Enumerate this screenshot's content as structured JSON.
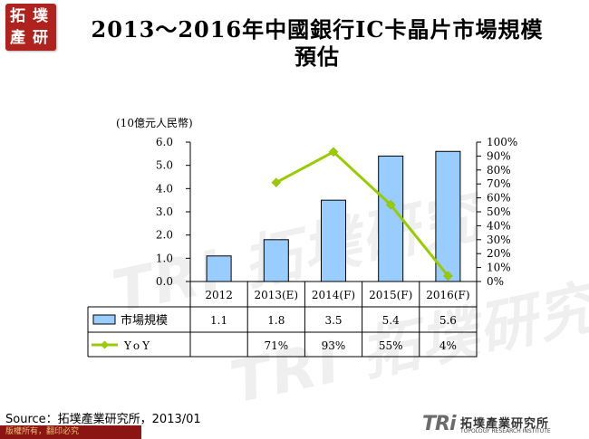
{
  "logo": {
    "chars": [
      "拓",
      "墣",
      "產",
      "研"
    ]
  },
  "header": {
    "title_line1": "2013～2016年中國銀行IC卡晶片市場規模",
    "title_line2": "預估"
  },
  "watermark": {
    "text": "TRI 拓墣研究"
  },
  "chart_data": {
    "type": "bar",
    "categories": [
      "2012",
      "2013(E)",
      "2014(F)",
      "2015(F)",
      "2016(F)"
    ],
    "ylabel": "(10億元人民幣)",
    "ylim": [
      0,
      6
    ],
    "yticks": [
      "0.0",
      "1.0",
      "2.0",
      "3.0",
      "4.0",
      "5.0",
      "6.0"
    ],
    "y2lim": [
      0,
      100
    ],
    "y2ticks": [
      "0%",
      "10%",
      "20%",
      "30%",
      "40%",
      "50%",
      "60%",
      "70%",
      "80%",
      "90%",
      "100%"
    ],
    "series": [
      {
        "name": "市場規模",
        "type": "bar",
        "axis": "left",
        "values": [
          1.1,
          1.8,
          3.5,
          5.4,
          5.6
        ],
        "labels": [
          "1.1",
          "1.8",
          "3.5",
          "5.4",
          "5.6"
        ],
        "color": "#99ccff"
      },
      {
        "name": "YoY",
        "type": "line",
        "axis": "right",
        "values": [
          null,
          71,
          93,
          55,
          4
        ],
        "labels": [
          "",
          "71%",
          "93%",
          "55%",
          "4%"
        ],
        "color": "#99cc00"
      }
    ],
    "grid": false,
    "legend": "data-table"
  },
  "footer": {
    "source": "Source：拓墣產業研究所，2013/01",
    "copyright": "版權所有，翻印必究",
    "tri_mark": "TRi",
    "tri_cn": "拓墣產業研究所",
    "tri_en": "TOPOLOGY RESEARCH INSTITUTE"
  }
}
